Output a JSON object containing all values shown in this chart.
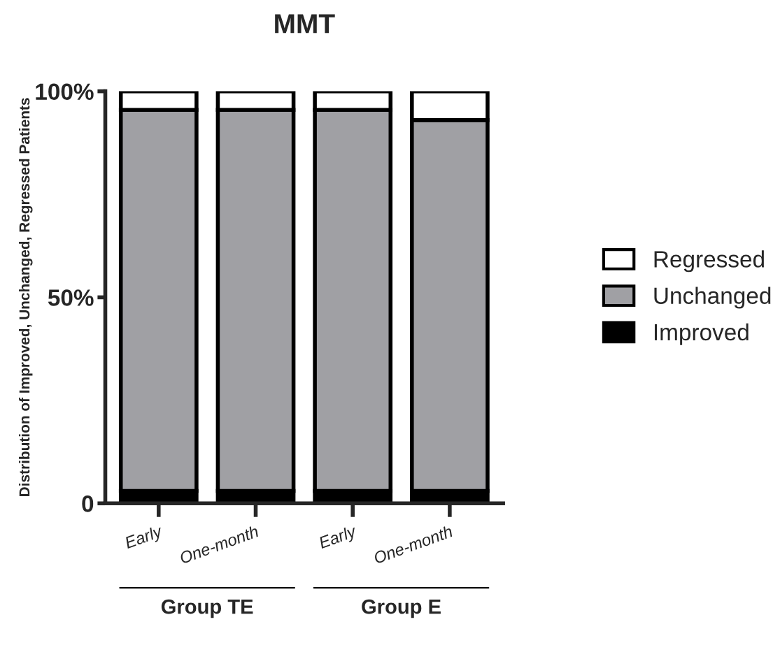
{
  "chart_data": {
    "type": "bar",
    "title": "MMT",
    "ylabel": "Distribution of Improved, Unchanged, Regressed Patients",
    "categories": [
      "Early",
      "One-month",
      "Early",
      "One-month"
    ],
    "stacked": true,
    "series": [
      {
        "name": "Improved",
        "color": "#000000",
        "values": [
          3,
          3,
          3,
          3
        ]
      },
      {
        "name": "Unchanged",
        "color": "#a0a0a4",
        "values": [
          92.5,
          92.5,
          92.5,
          90
        ]
      },
      {
        "name": "Regressed",
        "color": "#ffffff",
        "values": [
          4.5,
          4.5,
          4.5,
          7
        ]
      }
    ],
    "ylim": [
      0,
      100
    ],
    "yticks": [
      {
        "value": 0,
        "label": "0"
      },
      {
        "value": 50,
        "label": "50%"
      },
      {
        "value": 100,
        "label": "100%"
      }
    ],
    "grid": false,
    "legend": "right",
    "annotations": [
      "Group TE",
      "Group E"
    ]
  }
}
